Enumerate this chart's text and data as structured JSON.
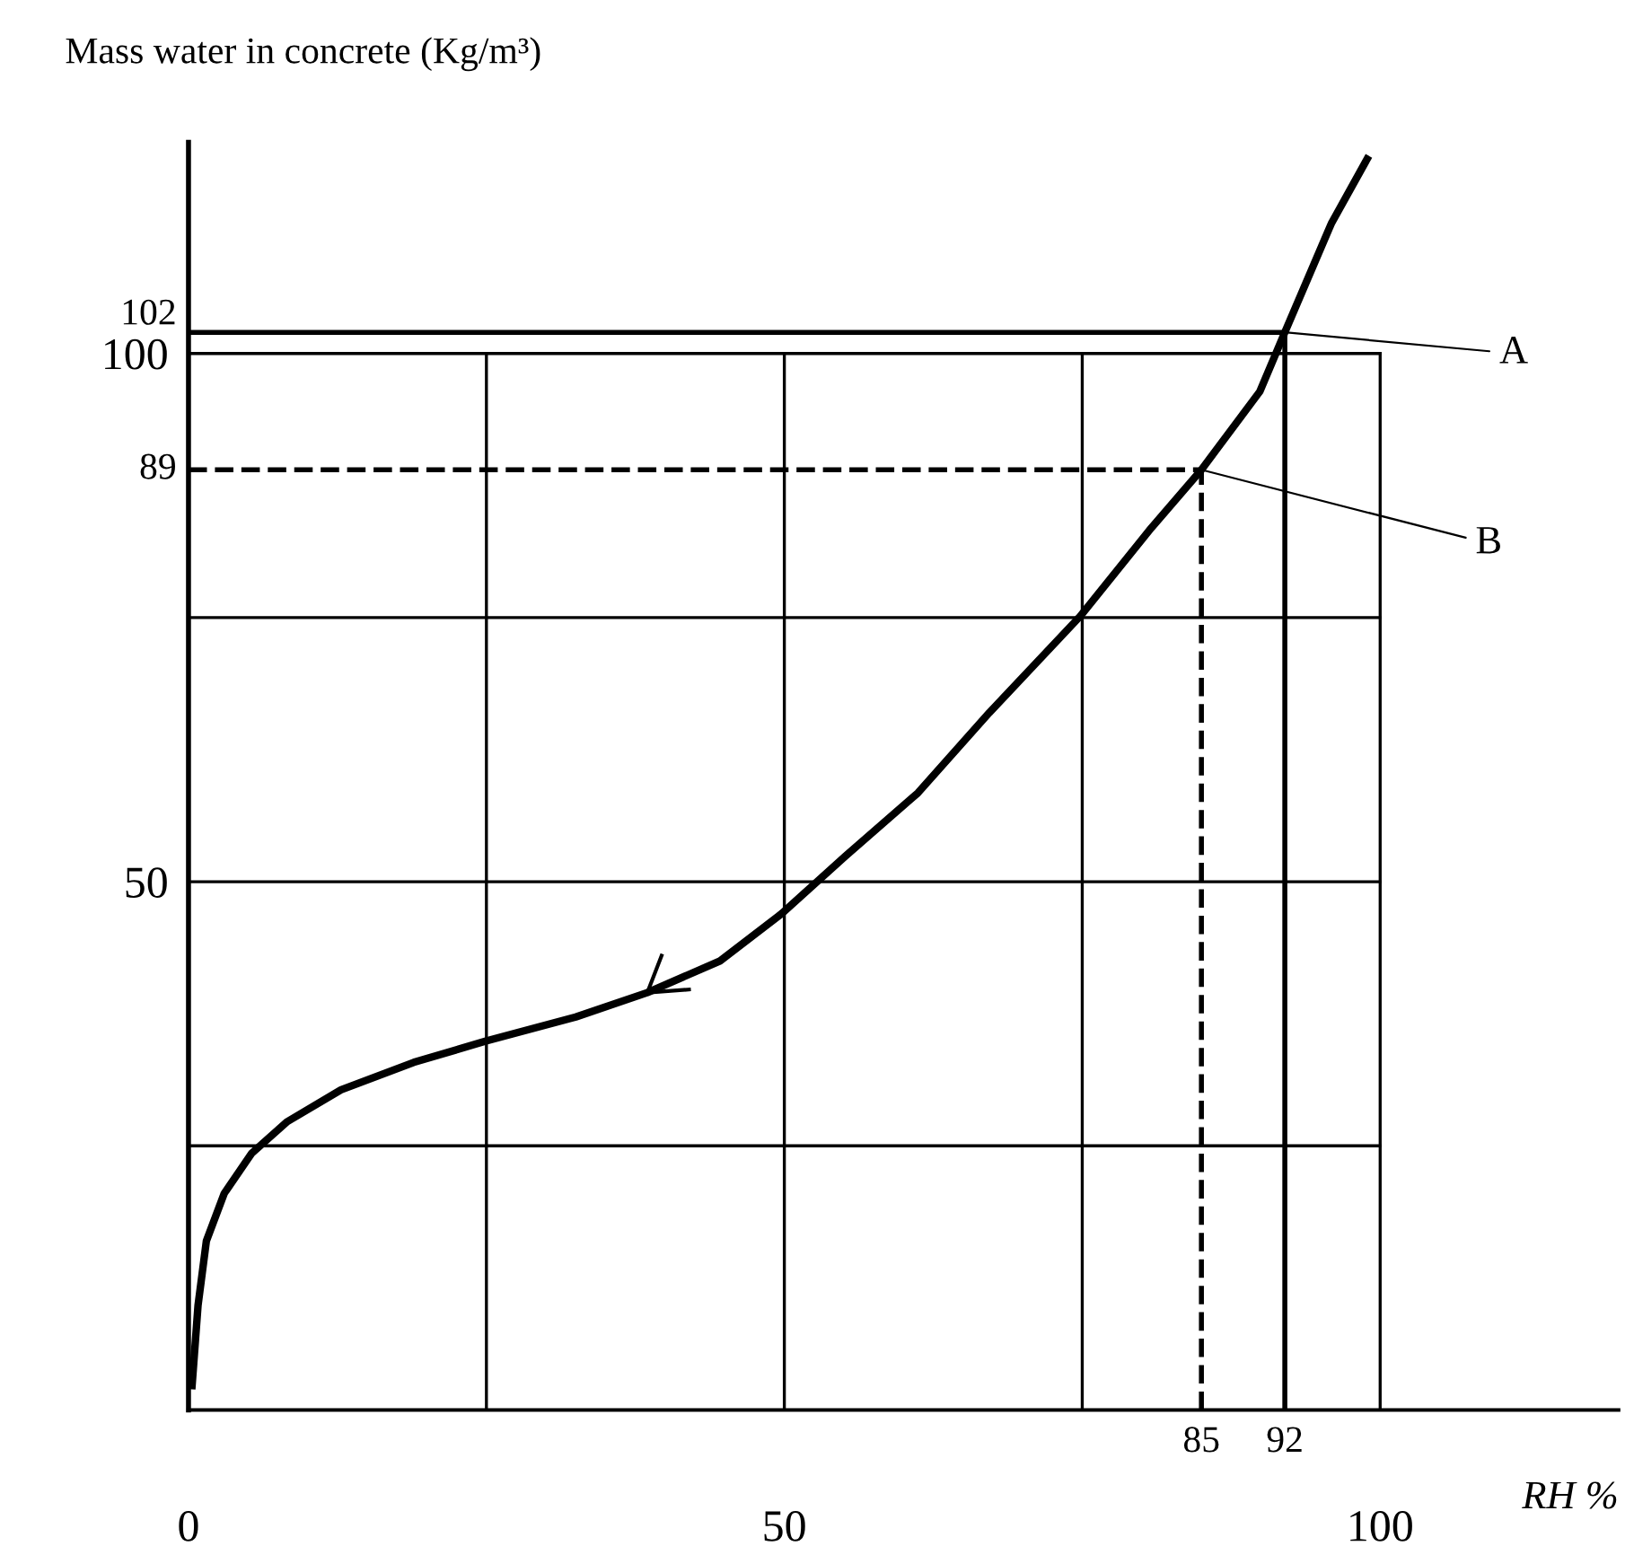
{
  "chart_data": {
    "type": "line",
    "ylabel": "Mass water in concrete (Kg/m³)",
    "xlabel": "RH %",
    "x": [
      0.3,
      0.8,
      1.5,
      3.0,
      5.3,
      8.3,
      12.8,
      18.9,
      24.9,
      32.5,
      38.5,
      44.6,
      49.8,
      55.1,
      61.2,
      67.2,
      74.8,
      80.8,
      85,
      89.9,
      92,
      95.9,
      98.9
    ],
    "series": [
      {
        "color": "#000000",
        "values": [
          2.3,
          9.9,
          16,
          20.5,
          24.3,
          27.3,
          30.3,
          32.9,
          34.9,
          37.2,
          39.5,
          42.5,
          47.0,
          52.4,
          58.4,
          66.0,
          75.1,
          83.5,
          89,
          96.4,
          102,
          112.3,
          118.4
        ]
      }
    ],
    "xlim": [
      0,
      120
    ],
    "ylim": [
      0,
      120
    ],
    "xticks": [
      0,
      {
        "value": 25,
        "label": null
      },
      50,
      {
        "value": 75,
        "label": null
      },
      100
    ],
    "yticks": [
      {
        "value": 25,
        "label": null
      },
      50,
      {
        "value": 75,
        "label": null
      },
      100
    ],
    "grid": true,
    "marker": "none",
    "line_style": "solid",
    "ref_lines": [
      {
        "axis": "y",
        "value": 102,
        "label": "102",
        "color": "#000000",
        "line_style": "solid"
      },
      {
        "axis": "x",
        "value": 92,
        "label": "92",
        "color": "#000000",
        "line_style": "solid"
      },
      {
        "axis": "y",
        "value": 89,
        "label": "89",
        "color": "#000000",
        "line_style": "dashed"
      },
      {
        "axis": "x",
        "value": 85,
        "label": "85",
        "color": "#000000",
        "line_style": "dashed"
      }
    ],
    "annotations": [
      {
        "text": "A",
        "x": 92,
        "y": 102
      },
      {
        "text": "B",
        "x": 85,
        "y": 89
      }
    ]
  }
}
